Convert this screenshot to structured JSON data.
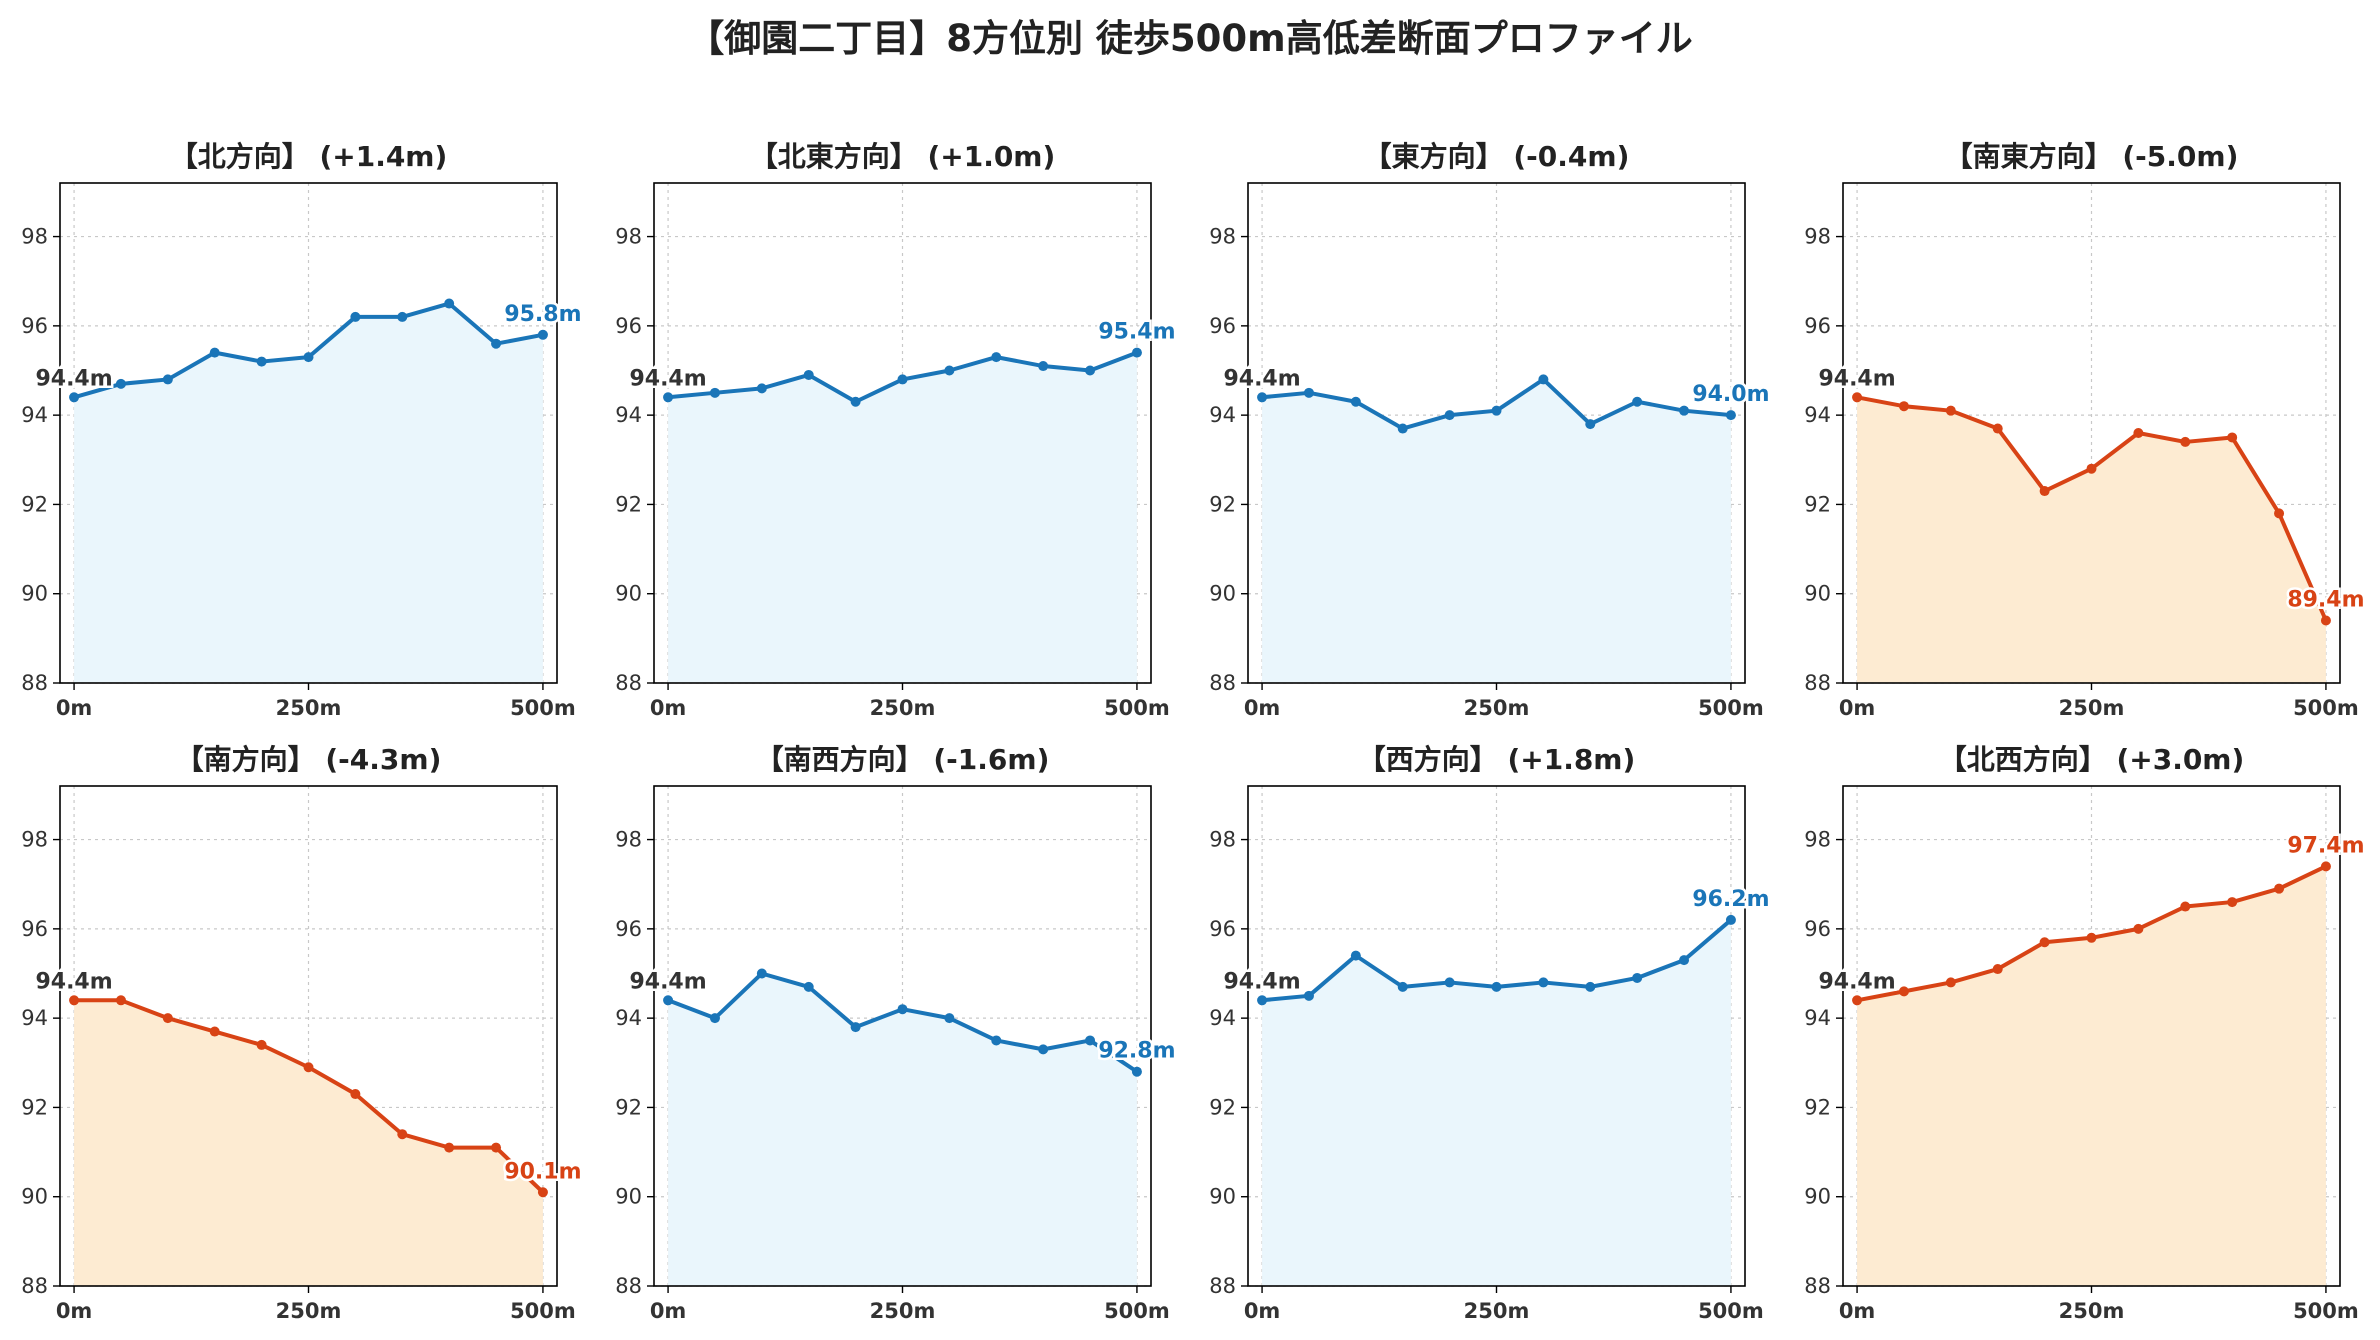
{
  "title": "【御園二丁目】8方位別 徒歩500m高低差断面プロファイル",
  "colors": {
    "up_line": "#1a75b8",
    "up_fill": "#eaf6fc",
    "down_line": "#d84315",
    "down_fill": "#fdebd2"
  },
  "chart_data": [
    {
      "type": "area",
      "title": "【北方向】 (+1.4m)",
      "trend": "up",
      "x": [
        0,
        50,
        100,
        150,
        200,
        250,
        300,
        350,
        400,
        450,
        500
      ],
      "values": [
        94.4,
        94.7,
        94.8,
        95.4,
        95.2,
        95.3,
        96.2,
        96.2,
        96.5,
        95.6,
        95.8
      ],
      "start_label": "94.4m",
      "end_label": "95.8m"
    },
    {
      "type": "area",
      "title": "【北東方向】 (+1.0m)",
      "trend": "up",
      "x": [
        0,
        50,
        100,
        150,
        200,
        250,
        300,
        350,
        400,
        450,
        500
      ],
      "values": [
        94.4,
        94.5,
        94.6,
        94.9,
        94.3,
        94.8,
        95.0,
        95.3,
        95.1,
        95.0,
        95.4
      ],
      "start_label": "94.4m",
      "end_label": "95.4m"
    },
    {
      "type": "area",
      "title": "【東方向】 (-0.4m)",
      "trend": "up",
      "x": [
        0,
        50,
        100,
        150,
        200,
        250,
        300,
        350,
        400,
        450,
        500
      ],
      "values": [
        94.4,
        94.5,
        94.3,
        93.7,
        94.0,
        94.1,
        94.8,
        93.8,
        94.3,
        94.1,
        94.0
      ],
      "start_label": "94.4m",
      "end_label": "94.0m"
    },
    {
      "type": "area",
      "title": "【南東方向】 (-5.0m)",
      "trend": "down",
      "x": [
        0,
        50,
        100,
        150,
        200,
        250,
        300,
        350,
        400,
        450,
        500
      ],
      "values": [
        94.4,
        94.2,
        94.1,
        93.7,
        92.3,
        92.8,
        93.6,
        93.4,
        93.5,
        91.8,
        89.4
      ],
      "start_label": "94.4m",
      "end_label": "89.4m"
    },
    {
      "type": "area",
      "title": "【南方向】 (-4.3m)",
      "trend": "down",
      "x": [
        0,
        50,
        100,
        150,
        200,
        250,
        300,
        350,
        400,
        450,
        500
      ],
      "values": [
        94.4,
        94.4,
        94.0,
        93.7,
        93.4,
        92.9,
        92.3,
        91.4,
        91.1,
        91.1,
        90.1
      ],
      "start_label": "94.4m",
      "end_label": "90.1m"
    },
    {
      "type": "area",
      "title": "【南西方向】 (-1.6m)",
      "trend": "up",
      "x": [
        0,
        50,
        100,
        150,
        200,
        250,
        300,
        350,
        400,
        450,
        500
      ],
      "values": [
        94.4,
        94.0,
        95.0,
        94.7,
        93.8,
        94.2,
        94.0,
        93.5,
        93.3,
        93.5,
        92.8
      ],
      "start_label": "94.4m",
      "end_label": "92.8m"
    },
    {
      "type": "area",
      "title": "【西方向】 (+1.8m)",
      "trend": "up",
      "x": [
        0,
        50,
        100,
        150,
        200,
        250,
        300,
        350,
        400,
        450,
        500
      ],
      "values": [
        94.4,
        94.5,
        95.4,
        94.7,
        94.8,
        94.7,
        94.8,
        94.7,
        94.9,
        95.3,
        96.2
      ],
      "start_label": "94.4m",
      "end_label": "96.2m"
    },
    {
      "type": "area",
      "title": "【北西方向】 (+3.0m)",
      "trend": "down",
      "x": [
        0,
        50,
        100,
        150,
        200,
        250,
        300,
        350,
        400,
        450,
        500
      ],
      "values": [
        94.4,
        94.6,
        94.8,
        95.1,
        95.7,
        95.8,
        96.0,
        96.5,
        96.6,
        96.9,
        97.4
      ],
      "start_label": "94.4m",
      "end_label": "97.4m"
    }
  ],
  "axes": {
    "ylim": [
      88,
      99.2
    ],
    "yticks": [
      "88",
      "90",
      "92",
      "94",
      "96",
      "98"
    ],
    "xlim": [
      -15,
      515
    ],
    "xticks": [
      {
        "value": 0,
        "label": "0m"
      },
      {
        "value": 250,
        "label": "250m"
      },
      {
        "value": 500,
        "label": "500m"
      }
    ],
    "grid": true
  }
}
